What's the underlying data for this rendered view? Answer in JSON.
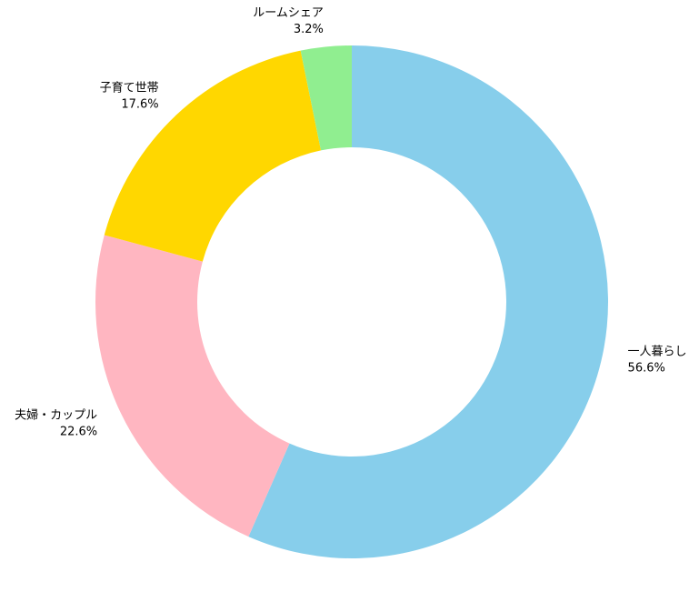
{
  "chart_data": {
    "type": "donut",
    "categories": [
      "一人暮らし",
      "夫婦・カップル",
      "子育て世帯",
      "ルームシェア"
    ],
    "values": [
      56.6,
      22.6,
      17.6,
      3.2
    ],
    "value_labels": [
      "56.6%",
      "22.6%",
      "17.6%",
      "3.2%"
    ],
    "colors": [
      "#87ceeb",
      "#ffb6c1",
      "#ffd700",
      "#90ee90"
    ]
  }
}
